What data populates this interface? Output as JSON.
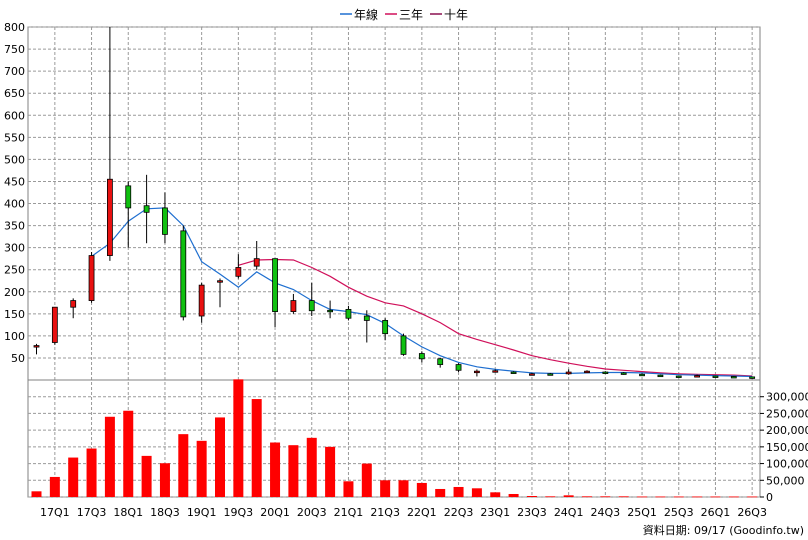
{
  "chart_data": {
    "type": "candlestick",
    "legend": [
      {
        "name": "年線",
        "color": "#1f6fd0"
      },
      {
        "name": "三年",
        "color": "#d0105a"
      },
      {
        "name": "十年",
        "color": "#8a1050"
      }
    ],
    "legend_position": "top-center",
    "grid": true,
    "colors": {
      "up": "#e81010",
      "down": "#10c010",
      "volume": "#ff0000",
      "grid": "#9a9a9a"
    },
    "price_axis": {
      "ylim": [
        0,
        800
      ],
      "ticks": [
        50,
        100,
        150,
        200,
        250,
        300,
        350,
        400,
        450,
        500,
        550,
        600,
        650,
        700,
        750,
        800
      ]
    },
    "volume_axis": {
      "ylim": [
        0,
        350000
      ],
      "ticks": [
        0,
        50000,
        100000,
        150000,
        200000,
        250000,
        300000
      ],
      "tick_labels": [
        "0",
        "50,000",
        "100,000",
        "150,000",
        "200,000",
        "250,000",
        "300,000"
      ]
    },
    "x_tick_labels": [
      "17Q1",
      "17Q3",
      "18Q1",
      "18Q3",
      "19Q1",
      "19Q3",
      "20Q1",
      "20Q3",
      "21Q1",
      "21Q3",
      "22Q1",
      "22Q3",
      "23Q1",
      "23Q3",
      "24Q1",
      "24Q3",
      "25Q1",
      "25Q3",
      "26Q1",
      "26Q3"
    ],
    "quarters": [
      "16Q4",
      "17Q1",
      "17Q2",
      "17Q3",
      "17Q4",
      "18Q1",
      "18Q2",
      "18Q3",
      "18Q4",
      "19Q1",
      "19Q2",
      "19Q3",
      "19Q4",
      "20Q1",
      "20Q2",
      "20Q3",
      "20Q4",
      "21Q1",
      "21Q2",
      "21Q3",
      "21Q4",
      "22Q1",
      "22Q2",
      "22Q3",
      "22Q4",
      "23Q1",
      "23Q2",
      "23Q3",
      "23Q4",
      "24Q1",
      "24Q2",
      "24Q3",
      "24Q4",
      "25Q1",
      "25Q2",
      "25Q3",
      "25Q4",
      "26Q1",
      "26Q2",
      "26Q3"
    ],
    "candles": [
      {
        "o": 75,
        "h": 82,
        "l": 58,
        "c": 78
      },
      {
        "o": 85,
        "h": 165,
        "l": 80,
        "c": 165
      },
      {
        "o": 165,
        "h": 185,
        "l": 140,
        "c": 180
      },
      {
        "o": 180,
        "h": 290,
        "l": 175,
        "c": 282
      },
      {
        "o": 282,
        "h": 800,
        "l": 270,
        "c": 455
      },
      {
        "o": 440,
        "h": 450,
        "l": 300,
        "c": 390
      },
      {
        "o": 395,
        "h": 465,
        "l": 310,
        "c": 380
      },
      {
        "o": 390,
        "h": 425,
        "l": 310,
        "c": 330
      },
      {
        "o": 338,
        "h": 350,
        "l": 135,
        "c": 143
      },
      {
        "o": 145,
        "h": 220,
        "l": 130,
        "c": 215
      },
      {
        "o": 222,
        "h": 230,
        "l": 165,
        "c": 225
      },
      {
        "o": 235,
        "h": 285,
        "l": 230,
        "c": 255
      },
      {
        "o": 258,
        "h": 315,
        "l": 250,
        "c": 275
      },
      {
        "o": 275,
        "h": 275,
        "l": 120,
        "c": 155
      },
      {
        "o": 155,
        "h": 195,
        "l": 150,
        "c": 180
      },
      {
        "o": 180,
        "h": 220,
        "l": 145,
        "c": 157
      },
      {
        "o": 158,
        "h": 180,
        "l": 140,
        "c": 155
      },
      {
        "o": 160,
        "h": 168,
        "l": 135,
        "c": 140
      },
      {
        "o": 145,
        "h": 158,
        "l": 85,
        "c": 135
      },
      {
        "o": 135,
        "h": 140,
        "l": 90,
        "c": 105
      },
      {
        "o": 100,
        "h": 105,
        "l": 55,
        "c": 58
      },
      {
        "o": 60,
        "h": 65,
        "l": 40,
        "c": 48
      },
      {
        "o": 48,
        "h": 50,
        "l": 28,
        "c": 35
      },
      {
        "o": 35,
        "h": 38,
        "l": 18,
        "c": 22
      },
      {
        "o": 20,
        "h": 24,
        "l": 8,
        "c": 20
      },
      {
        "o": 20,
        "h": 24,
        "l": 18,
        "c": 21
      },
      {
        "o": 18,
        "h": 20,
        "l": 14,
        "c": 16
      },
      {
        "o": 14,
        "h": 16,
        "l": 12,
        "c": 14
      },
      {
        "o": 14,
        "h": 16,
        "l": 12,
        "c": 13
      },
      {
        "o": 14,
        "h": 24,
        "l": 12,
        "c": 18
      },
      {
        "o": 18,
        "h": 22,
        "l": 16,
        "c": 20
      },
      {
        "o": 18,
        "h": 20,
        "l": 14,
        "c": 16
      },
      {
        "o": 16,
        "h": 18,
        "l": 12,
        "c": 13
      },
      {
        "o": 13,
        "h": 15,
        "l": 10,
        "c": 11
      },
      {
        "o": 11,
        "h": 12,
        "l": 8,
        "c": 9
      },
      {
        "o": 9,
        "h": 10,
        "l": 7,
        "c": 8
      },
      {
        "o": 8,
        "h": 12,
        "l": 7,
        "c": 10
      },
      {
        "o": 9,
        "h": 10,
        "l": 7,
        "c": 8
      },
      {
        "o": 8,
        "h": 9,
        "l": 6,
        "c": 7
      },
      {
        "o": 7,
        "h": 8,
        "l": 3,
        "c": 4
      }
    ],
    "volume": [
      17000,
      60000,
      118000,
      145000,
      240000,
      258000,
      123000,
      101000,
      188000,
      168000,
      238000,
      352000,
      293000,
      163000,
      155000,
      177000,
      150000,
      47000,
      100000,
      50000,
      50000,
      42000,
      24000,
      30000,
      26000,
      14000,
      9000,
      3000,
      2000,
      5000,
      2000,
      2000,
      2000,
      1500,
      1500,
      1500,
      1500,
      1500,
      1500,
      1500
    ],
    "ma_year": [
      null,
      null,
      null,
      280,
      310,
      360,
      388,
      390,
      350,
      268,
      240,
      210,
      245,
      220,
      205,
      180,
      160,
      155,
      148,
      128,
      100,
      75,
      55,
      40,
      30,
      24,
      20,
      16,
      15,
      15,
      16,
      17,
      17,
      16,
      14,
      12,
      11,
      10,
      9,
      8
    ],
    "ma_3year": [
      null,
      null,
      null,
      null,
      null,
      null,
      null,
      null,
      null,
      null,
      null,
      260,
      272,
      273,
      272,
      255,
      235,
      210,
      190,
      175,
      168,
      150,
      130,
      105,
      92,
      80,
      68,
      55,
      46,
      38,
      31,
      25,
      22,
      19,
      16,
      14,
      13,
      12,
      11,
      9
    ]
  },
  "source_text": "資料日期: 09/17  (Goodinfo.tw)"
}
